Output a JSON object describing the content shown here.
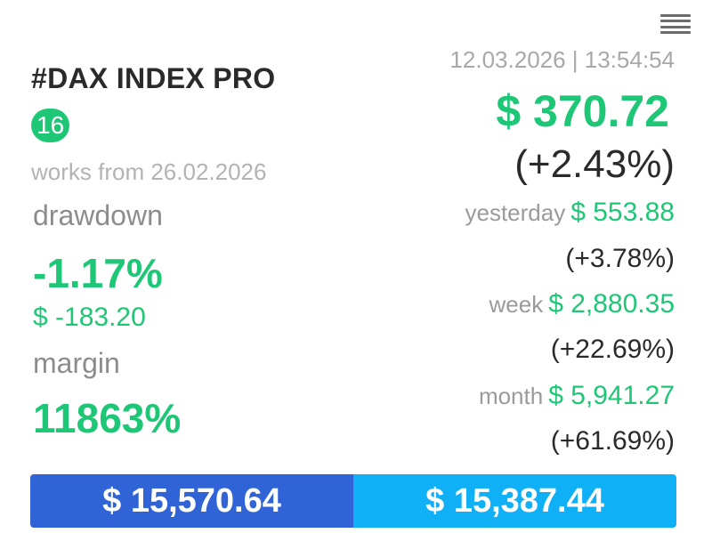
{
  "header": {
    "title": "#DAX INDEX PRO",
    "badge": "16",
    "works_from": "works from 26.02.2026",
    "timestamp": "12.03.2026 | 13:54:54"
  },
  "stats": {
    "drawdown_label": "drawdown",
    "drawdown_pct": "-1.17%",
    "drawdown_amount": "$ -183.20",
    "margin_label": "margin",
    "margin_value": "11863%"
  },
  "price": {
    "current": "$ 370.72",
    "change": "(+2.43%)"
  },
  "periods": [
    {
      "label": "yesterday",
      "amount": "$ 553.88",
      "pct": "(+3.78%)"
    },
    {
      "label": "week",
      "amount": "$ 2,880.35",
      "pct": "(+22.69%)"
    },
    {
      "label": "month",
      "amount": "$ 5,941.27",
      "pct": "(+61.69%)"
    }
  ],
  "footer": {
    "left_value": "$ 15,570.64",
    "right_value": "$ 15,387.44"
  },
  "colors": {
    "green": "#1ec776",
    "blue_dark": "#2f63d6",
    "blue_light": "#10b0f7"
  },
  "icons": {
    "menu": "menu-icon"
  }
}
